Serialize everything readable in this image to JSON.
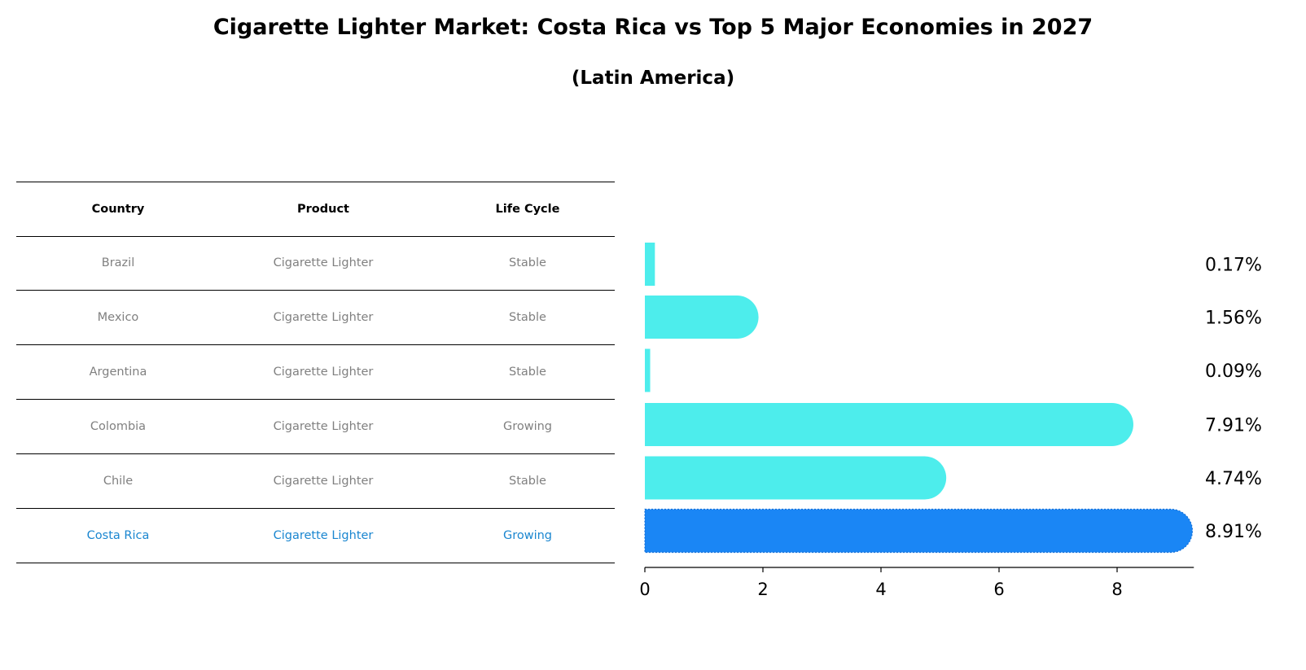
{
  "title": "Cigarette Lighter Market: Costa Rica vs Top 5 Major Economies in 2027",
  "subtitle": "(Latin America)",
  "table": {
    "headers": [
      "Country",
      "Product",
      "Life Cycle"
    ],
    "rows": [
      {
        "country": "Brazil",
        "product": "Cigarette Lighter",
        "life_cycle": "Stable",
        "highlight": false
      },
      {
        "country": "Mexico",
        "product": "Cigarette Lighter",
        "life_cycle": "Stable",
        "highlight": false
      },
      {
        "country": "Argentina",
        "product": "Cigarette Lighter",
        "life_cycle": "Stable",
        "highlight": false
      },
      {
        "country": "Colombia",
        "product": "Cigarette Lighter",
        "life_cycle": "Growing",
        "highlight": false
      },
      {
        "country": "Chile",
        "product": "Cigarette Lighter",
        "life_cycle": "Stable",
        "highlight": false
      },
      {
        "country": "Costa Rica",
        "product": "Cigarette Lighter",
        "life_cycle": "Growing",
        "highlight": true
      }
    ]
  },
  "chart_data": {
    "type": "bar",
    "orientation": "horizontal",
    "categories": [
      "Brazil",
      "Mexico",
      "Argentina",
      "Colombia",
      "Chile",
      "Costa Rica"
    ],
    "values": [
      0.17,
      1.56,
      0.09,
      7.91,
      4.74,
      8.91
    ],
    "labels": [
      "0.17%",
      "1.56%",
      "0.09%",
      "7.91%",
      "4.74%",
      "8.91%"
    ],
    "xlim": [
      0,
      9.3
    ],
    "xticks": [
      0,
      2,
      4,
      6,
      8
    ],
    "xlabel": "",
    "ylabel": "",
    "highlight_category": "Costa Rica"
  },
  "colors": {
    "bar": "#4dedec",
    "highlight_bar": "#1a86f5",
    "muted_text": "#808080",
    "highlight_text": "#1a86d0"
  }
}
